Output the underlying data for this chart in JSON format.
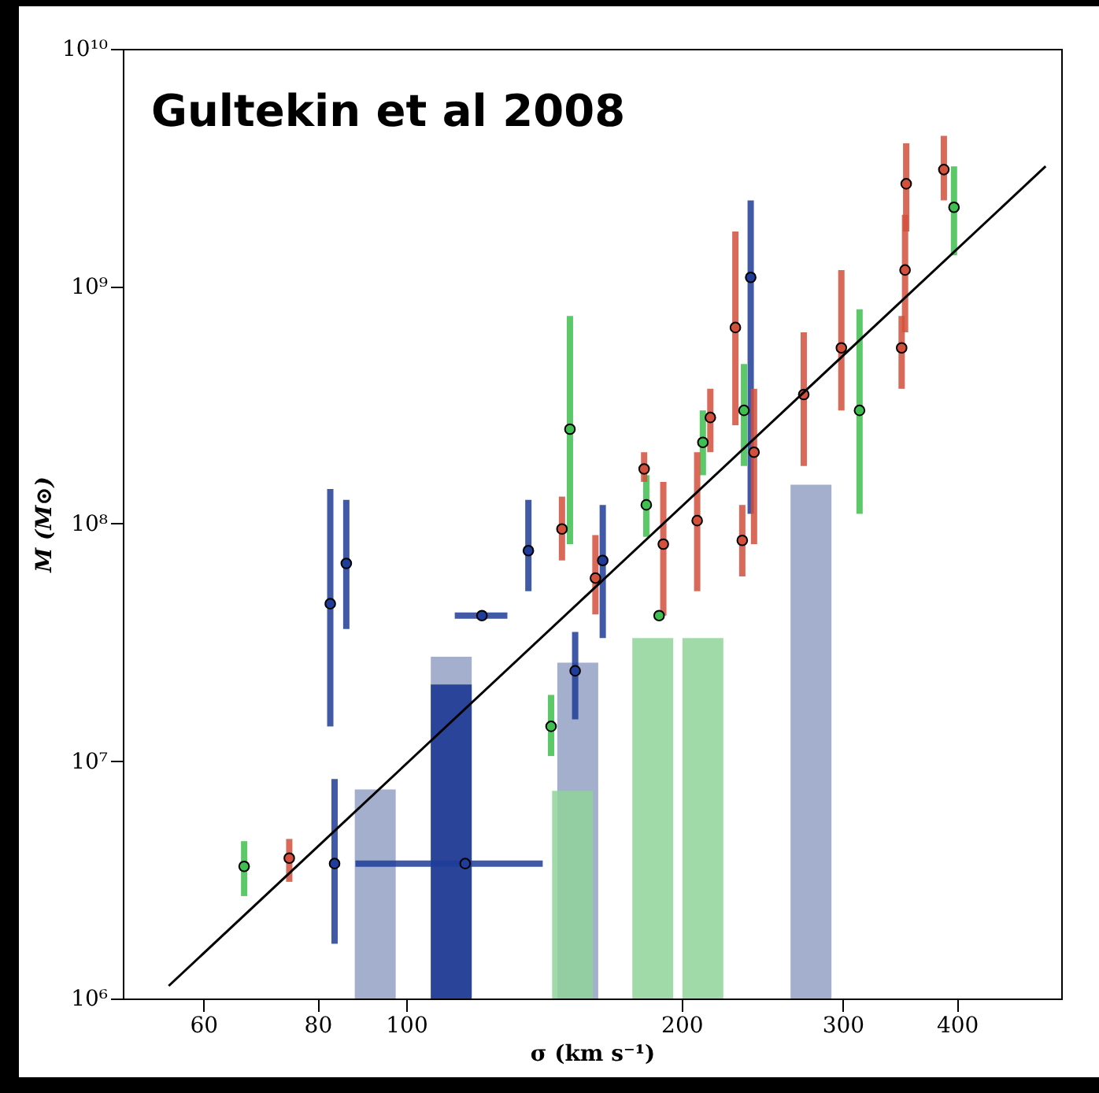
{
  "chart_data": {
    "type": "scatter",
    "title": "Gultekin et al 2008",
    "xlabel": "σ (km s⁻¹)",
    "ylabel": "M (M⊙)",
    "log": "xy",
    "grid": false,
    "marker": "circle",
    "xlim": [
      49,
      520
    ],
    "xticks": [
      60,
      80,
      100,
      200,
      300,
      400
    ],
    "ylim": [
      1000000,
      10000000000
    ],
    "yticks": [
      {
        "value": 1000000,
        "label": "10⁶"
      },
      {
        "value": 10000000,
        "label": "10⁷"
      },
      {
        "value": 100000000,
        "label": "10⁸"
      },
      {
        "value": 1000000000,
        "label": "10⁹"
      },
      {
        "value": 10000000000,
        "label": "10¹⁰"
      }
    ],
    "series": [
      {
        "type": "bar",
        "color": "#93a1c4",
        "x": [
          92.5,
          112,
          154,
          277
        ],
        "values": [
          7600000,
          27500000,
          26000000,
          146000000
        ]
      },
      {
        "type": "bar",
        "color": "#14318f",
        "x": [
          112
        ],
        "values": [
          21000000
        ]
      },
      {
        "type": "bar",
        "color": "#8fd49a",
        "x": [
          152,
          186,
          211
        ],
        "values": [
          7500000,
          33000000,
          33000000
        ]
      },
      {
        "color": "#1f3d99",
        "x": [
          83.5,
          82.6,
          86,
          136,
          116,
          121,
          153,
          164,
          238
        ],
        "values": [
          3700000,
          46000000,
          68000000,
          77000000,
          3700000,
          41000000,
          24000000,
          70000000,
          1090000000
        ],
        "errors": [
          [
            1700000,
            8400000
          ],
          [
            14000000,
            140000000
          ],
          [
            36000000,
            126000000
          ],
          [
            52000000,
            126000000
          ],
          null,
          null,
          [
            15000000,
            35000000
          ],
          [
            33000000,
            120000000
          ],
          [
            110000000,
            2300000000
          ]
        ],
        "xerrors": [
          null,
          null,
          null,
          null,
          [
            88,
            141
          ],
          [
            113,
            129
          ],
          null,
          null,
          null
        ]
      },
      {
        "color": "#3fbf4f",
        "x": [
          66.5,
          144,
          151,
          183,
          189,
          211,
          234,
          313,
          397
        ],
        "values": [
          3600000,
          14000000,
          250000000,
          120000000,
          41000000,
          220000000,
          300000000,
          300000000,
          2150000000
        ],
        "errors": [
          [
            2700000,
            4600000
          ],
          [
            10500000,
            19000000
          ],
          [
            82000000,
            750000000
          ],
          [
            88000000,
            160000000
          ],
          null,
          [
            160000000,
            300000000
          ],
          [
            175000000,
            470000000
          ],
          [
            110000000,
            800000000
          ],
          [
            1350000000,
            3200000000
          ]
        ]
      },
      {
        "color": "#d2503c",
        "x": [
          74.5,
          148,
          161,
          182,
          191,
          208,
          215,
          229,
          240,
          233,
          272,
          299,
          348,
          351,
          352,
          387
        ],
        "values": [
          3900000,
          95000000,
          59000000,
          170000000,
          82000000,
          103000000,
          280000000,
          670000000,
          200000000,
          85000000,
          350000000,
          550000000,
          550000000,
          1170000000,
          2700000000,
          3100000000
        ],
        "errors": [
          [
            3100000,
            4700000
          ],
          [
            70000000,
            130000000
          ],
          [
            41500000,
            89500000
          ],
          [
            150000000,
            200000000
          ],
          [
            41000000,
            150000000
          ],
          [
            52000000,
            200000000
          ],
          [
            200000000,
            370000000
          ],
          [
            260000000,
            1700000000
          ],
          [
            82000000,
            370000000
          ],
          [
            60000000,
            120000000
          ],
          [
            175000000,
            640000000
          ],
          [
            300000000,
            1170000000
          ],
          [
            370000000,
            750000000
          ],
          [
            640000000,
            2000000000
          ],
          [
            1700000000,
            4000000000
          ],
          [
            2300000000,
            4300000000
          ]
        ]
      },
      {
        "type": "line",
        "color": "#000000",
        "marker": "none",
        "x": [
          55,
          500
        ],
        "values": [
          1130000,
          3200000000
        ]
      }
    ]
  }
}
